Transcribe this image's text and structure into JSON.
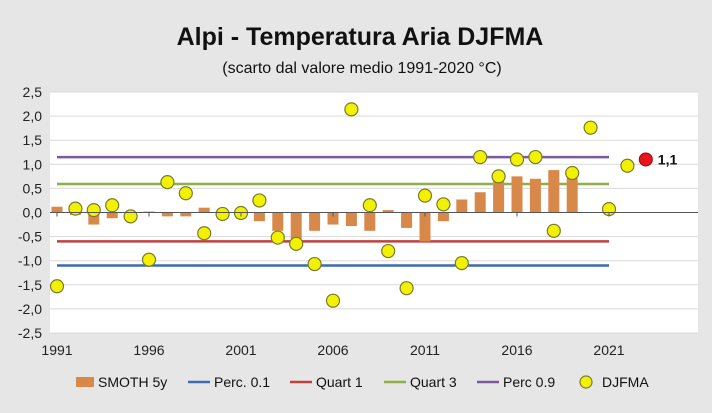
{
  "colors": {
    "background": "#e6e6e6",
    "plot_background": "#ffffff",
    "smooth": "#d8894a",
    "perc01": "#3d6cb0",
    "quart1": "#c0413d",
    "quart3": "#8db04a",
    "perc09": "#7a5a9a",
    "djfma_fill": "#f2f200",
    "djfma_stroke": "#7a7a30",
    "highlight": "#e8141b"
  },
  "chart_data": {
    "type": "bar+line+scatter",
    "title": "Alpi  - Temperatura Aria DJFMA",
    "subtitle": "(scarto dal valore medio 1991-2020 °C)",
    "xlabel": "",
    "ylabel": "",
    "xlim": [
      1991,
      2023
    ],
    "ylim": [
      -2.5,
      2.5
    ],
    "y_ticks": [
      2.5,
      2.0,
      1.5,
      1.0,
      0.5,
      0.0,
      -0.5,
      -1.0,
      -1.5,
      -2.0,
      -2.5
    ],
    "y_tick_labels": [
      "2,5",
      "2,0",
      "1,5",
      "1,0",
      "0,5",
      "0,0",
      "-0,5",
      "-1,0",
      "-1,5",
      "-2,0",
      "-2,5"
    ],
    "x_ticks": [
      1991,
      1996,
      2001,
      2006,
      2011,
      2016,
      2021
    ],
    "x_tick_labels": [
      "1991",
      "1996",
      "2001",
      "2006",
      "2011",
      "2016",
      "2021"
    ],
    "smooth": {
      "name": "SMOTH 5y",
      "years": [
        1991,
        1992,
        1993,
        1994,
        1995,
        1996,
        1997,
        1998,
        1999,
        2000,
        2001,
        2002,
        2003,
        2004,
        2005,
        2006,
        2007,
        2008,
        2009,
        2010,
        2011,
        2012,
        2013,
        2014,
        2015,
        2016,
        2017,
        2018,
        2019
      ],
      "values": [
        0.12,
        -0.05,
        -0.25,
        -0.12,
        -0.02,
        0.02,
        -0.08,
        -0.08,
        0.1,
        -0.04,
        0.0,
        -0.18,
        -0.38,
        -0.55,
        -0.38,
        -0.25,
        -0.28,
        -0.38,
        0.05,
        -0.32,
        -0.6,
        -0.18,
        0.27,
        0.42,
        0.65,
        0.75,
        0.7,
        0.88,
        0.72
      ]
    },
    "reference_lines": [
      {
        "name": "Perc. 0.1",
        "value": -1.1
      },
      {
        "name": "Quart 1",
        "value": -0.6
      },
      {
        "name": "Quart 3",
        "value": 0.59
      },
      {
        "name": "Perc 0.9",
        "value": 1.15
      }
    ],
    "djfma": {
      "name": "DJFMA",
      "years": [
        1991,
        1992,
        1993,
        1994,
        1995,
        1996,
        1997,
        1998,
        1999,
        2000,
        2001,
        2002,
        2003,
        2004,
        2005,
        2006,
        2007,
        2008,
        2009,
        2010,
        2011,
        2012,
        2013,
        2014,
        2015,
        2016,
        2017,
        2018,
        2019,
        2020,
        2021,
        2022
      ],
      "values": [
        -1.53,
        0.08,
        0.05,
        0.15,
        -0.08,
        -0.98,
        0.63,
        0.4,
        -0.43,
        -0.03,
        -0.01,
        0.25,
        -0.52,
        -0.65,
        -1.07,
        -1.83,
        2.14,
        0.15,
        -0.8,
        -1.57,
        0.35,
        0.17,
        -1.05,
        1.15,
        0.75,
        1.1,
        1.15,
        -0.38,
        0.82,
        1.76,
        0.07,
        0.97
      ]
    },
    "highlight": {
      "year": 2023,
      "value": 1.1,
      "label": "1,1"
    },
    "legend_position": "bottom"
  }
}
